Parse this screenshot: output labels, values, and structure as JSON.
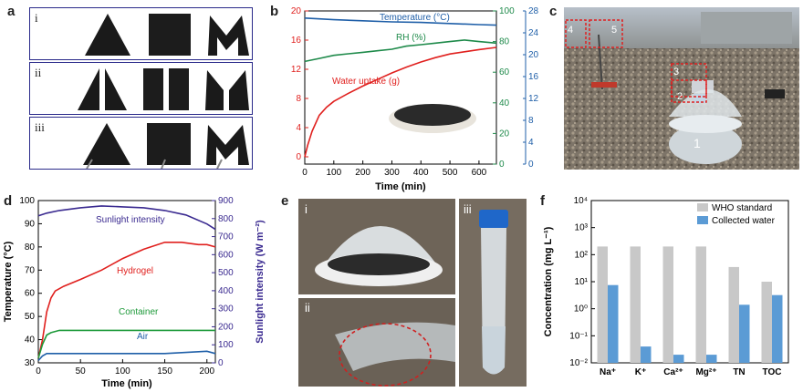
{
  "panels": {
    "a": {
      "letter": "a",
      "rows": [
        "i",
        "ii",
        "iii"
      ]
    },
    "b": {
      "letter": "b"
    },
    "c": {
      "letter": "c",
      "markers": [
        "1",
        "2",
        "3",
        "4",
        "5"
      ]
    },
    "d": {
      "letter": "d"
    },
    "e": {
      "letter": "e",
      "subpanels": [
        "i",
        "ii",
        "iii"
      ]
    },
    "f": {
      "letter": "f"
    }
  },
  "chart_data": [
    {
      "id": "b",
      "type": "line",
      "xlabel": "Time (min)",
      "ylabel_left": "Water uptake (g)",
      "ylabel_right1": "RH (%)",
      "ylabel_right2": "Temperature (°C)",
      "x_ticks": [
        "0",
        "100",
        "200",
        "300",
        "400",
        "500",
        "600"
      ],
      "xlim": [
        0,
        660
      ],
      "left_ticks": [
        "0",
        "4",
        "8",
        "12",
        "16",
        "20"
      ],
      "ylim_left": [
        -1,
        20
      ],
      "right1_ticks": [
        "0",
        "20",
        "40",
        "60",
        "80",
        "100"
      ],
      "ylim_right1": [
        0,
        100
      ],
      "right2_ticks": [
        "0",
        "4",
        "8",
        "12",
        "16",
        "20",
        "24",
        "28"
      ],
      "ylim_right2": [
        0,
        28
      ],
      "series": [
        {
          "name": "Temperature (°C)",
          "axis": "right2",
          "color": "#1f5fa8",
          "x": [
            0,
            100,
            200,
            300,
            400,
            500,
            600,
            660
          ],
          "y": [
            26.7,
            26.4,
            26.2,
            26.0,
            25.9,
            25.7,
            25.5,
            25.4
          ]
        },
        {
          "name": "RH (%)",
          "axis": "right1",
          "color": "#1e8a4a",
          "x": [
            0,
            50,
            100,
            150,
            200,
            250,
            300,
            350,
            400,
            450,
            500,
            550,
            600,
            660
          ],
          "y": [
            67,
            69,
            71,
            72,
            73,
            74,
            75,
            77,
            78,
            79,
            80,
            81,
            80,
            79
          ]
        },
        {
          "name": "Water uptake (g)",
          "axis": "left",
          "color": "#e0201e",
          "x": [
            0,
            10,
            25,
            50,
            75,
            100,
            150,
            200,
            250,
            300,
            350,
            400,
            450,
            500,
            550,
            600,
            660
          ],
          "y": [
            0,
            1.6,
            3.5,
            5.7,
            6.8,
            7.6,
            8.7,
            9.7,
            10.6,
            11.5,
            12.3,
            13.0,
            13.6,
            14.1,
            14.4,
            14.7,
            15.0
          ]
        }
      ],
      "labels": {
        "temperature": "Temperature (°C)",
        "rh": "RH (%)",
        "water": "Water uptake (g)"
      }
    },
    {
      "id": "d",
      "type": "line",
      "xlabel": "Time (min)",
      "ylabel_left": "Temperature (°C)",
      "ylabel_right": "Sunlight intensity (W m⁻²)",
      "x_ticks": [
        "0",
        "50",
        "100",
        "150",
        "200"
      ],
      "xlim": [
        0,
        210
      ],
      "left_ticks": [
        "30",
        "40",
        "50",
        "60",
        "70",
        "80",
        "90",
        "100"
      ],
      "ylim_left": [
        30,
        100
      ],
      "right_ticks": [
        "0",
        "100",
        "200",
        "300",
        "400",
        "500",
        "600",
        "700",
        "800",
        "900"
      ],
      "ylim_right": [
        0,
        900
      ],
      "series": [
        {
          "name": "Sunlight intensity",
          "axis": "right",
          "color": "#3a2a90",
          "x": [
            0,
            10,
            25,
            50,
            75,
            100,
            125,
            150,
            175,
            200,
            210
          ],
          "y": [
            815,
            830,
            845,
            860,
            870,
            865,
            860,
            845,
            820,
            770,
            740
          ]
        },
        {
          "name": "Hydrogel",
          "axis": "left",
          "color": "#e0201e",
          "x": [
            0,
            5,
            10,
            15,
            20,
            30,
            50,
            75,
            100,
            125,
            150,
            170,
            190,
            200,
            210
          ],
          "y": [
            32,
            40,
            52,
            58,
            61,
            63,
            66,
            70,
            75,
            79,
            82,
            82,
            81,
            81,
            80
          ]
        },
        {
          "name": "Container",
          "axis": "left",
          "color": "#1e9a3a",
          "x": [
            0,
            5,
            10,
            15,
            25,
            50,
            100,
            150,
            200,
            210
          ],
          "y": [
            32,
            38,
            42,
            43,
            44,
            44,
            44,
            44,
            44,
            44
          ]
        },
        {
          "name": "Air",
          "axis": "left",
          "color": "#1f5fa8",
          "x": [
            0,
            5,
            10,
            25,
            50,
            100,
            150,
            200,
            210
          ],
          "y": [
            31,
            33,
            34,
            34,
            34,
            34,
            34,
            35,
            34
          ]
        }
      ],
      "labels": {
        "sunlight": "Sunlight intensity",
        "hydrogel": "Hydrogel",
        "container": "Container",
        "air": "Air"
      }
    },
    {
      "id": "f",
      "type": "bar",
      "ylabel": "Concentration (mg L⁻¹)",
      "yscale": "log",
      "ylim": [
        0.01,
        10000
      ],
      "y_ticks": [
        "10⁻²",
        "10⁻¹",
        "10⁰",
        "10¹",
        "10²",
        "10³",
        "10⁴"
      ],
      "categories": [
        "Na⁺",
        "K⁺",
        "Ca²⁺",
        "Mg²⁺",
        "TN",
        "TOC"
      ],
      "series": [
        {
          "name": "WHO standard",
          "color": "#c8c8c8",
          "values": [
            200,
            200,
            200,
            200,
            35,
            10
          ]
        },
        {
          "name": "Collected water",
          "color": "#5b9bd5",
          "values": [
            7.5,
            0.04,
            0.02,
            0.02,
            1.4,
            3.2
          ]
        }
      ],
      "legend": "top-right"
    }
  ]
}
